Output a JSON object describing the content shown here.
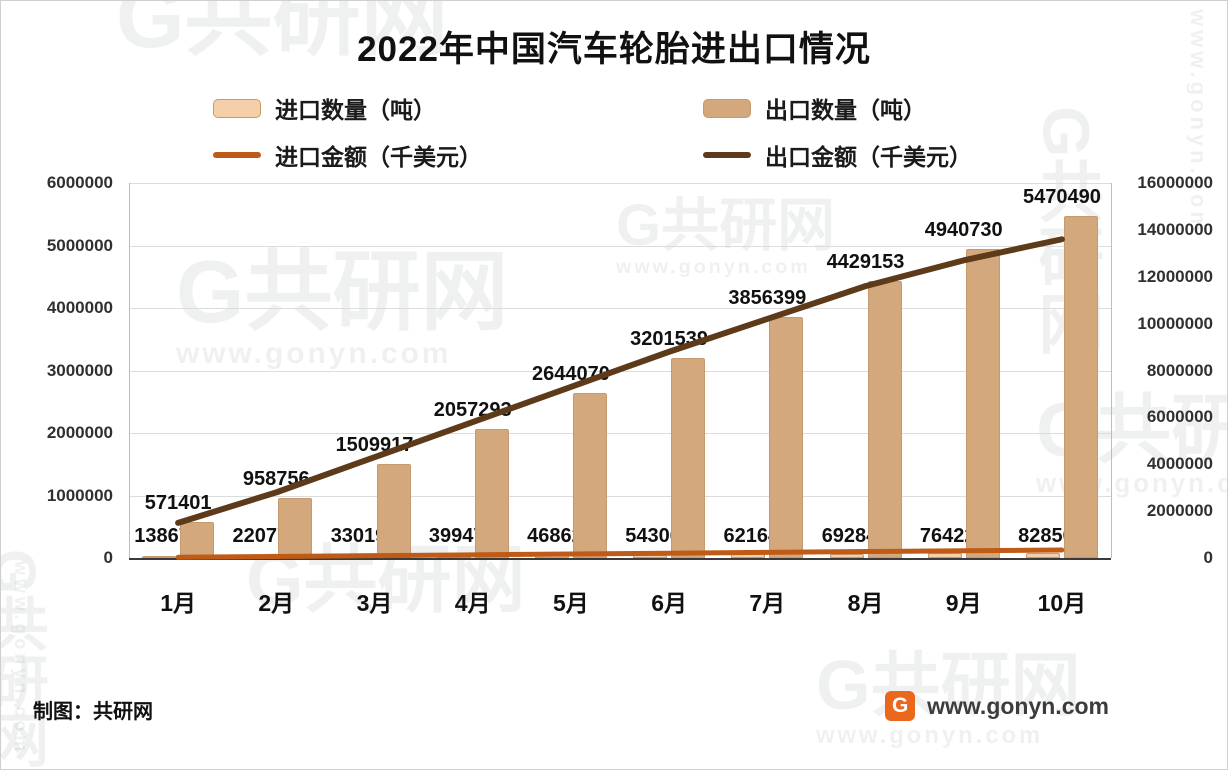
{
  "title": "2022年中国汽车轮胎进出口情况",
  "legend": {
    "items": [
      {
        "label": "进口数量（吨）",
        "swatch": "bar",
        "color": "#f4cfaa",
        "border": "#c89a6e"
      },
      {
        "label": "出口数量（吨）",
        "swatch": "bar",
        "color": "#d2a87c",
        "border": "#c49a6e"
      },
      {
        "label": "进口金额（千美元）",
        "swatch": "line",
        "color": "#bf5b16",
        "border": ""
      },
      {
        "label": "出口金额（千美元）",
        "swatch": "line",
        "color": "#5d3a1a",
        "border": ""
      }
    ]
  },
  "chart_data": {
    "type": "bar+line",
    "title": "2022年中国汽车轮胎进出口情况",
    "categories": [
      "1月",
      "2月",
      "3月",
      "4月",
      "5月",
      "6月",
      "7月",
      "8月",
      "9月",
      "10月"
    ],
    "series": [
      {
        "name": "进口数量（吨）",
        "type": "bar",
        "axis": "left",
        "color": "#f4cfaa",
        "border": "#c89a6e",
        "values": [
          13867,
          22077,
          33019,
          39947,
          46862,
          54306,
          62164,
          69284,
          76422,
          82850
        ]
      },
      {
        "name": "出口数量（吨）",
        "type": "bar",
        "axis": "left",
        "color": "#d2a87c",
        "border": "#c49a6e",
        "values": [
          571401,
          958756,
          1509917,
          2057293,
          2644070,
          3201539,
          3856399,
          4429153,
          4940730,
          5470490
        ]
      },
      {
        "name": "进口金额（千美元）",
        "type": "line",
        "axis": "right",
        "color": "#bf5b16",
        "values": [
          30000,
          65000,
          100000,
          135000,
          170000,
          205000,
          240000,
          275000,
          310000,
          340000
        ]
      },
      {
        "name": "出口金额（千美元）",
        "type": "line",
        "axis": "right",
        "color": "#5d3a1a",
        "values": [
          1500000,
          2800000,
          4300000,
          5800000,
          7300000,
          8800000,
          10200000,
          11600000,
          12700000,
          13600000
        ]
      }
    ],
    "left_axis": {
      "min": 0,
      "max": 6000000,
      "ticks": [
        0,
        1000000,
        2000000,
        3000000,
        4000000,
        5000000,
        6000000
      ]
    },
    "right_axis": {
      "min": 0,
      "max": 16000000,
      "ticks": [
        0,
        2000000,
        4000000,
        6000000,
        8000000,
        10000000,
        12000000,
        14000000,
        16000000
      ]
    },
    "grid": true,
    "legend_position": "top"
  },
  "footer": {
    "credit": "制图：共研网",
    "site": "www.gonyn.com"
  },
  "watermark": {
    "letter": "G",
    "brand": "共研网",
    "url": "www.gonyn.com"
  }
}
